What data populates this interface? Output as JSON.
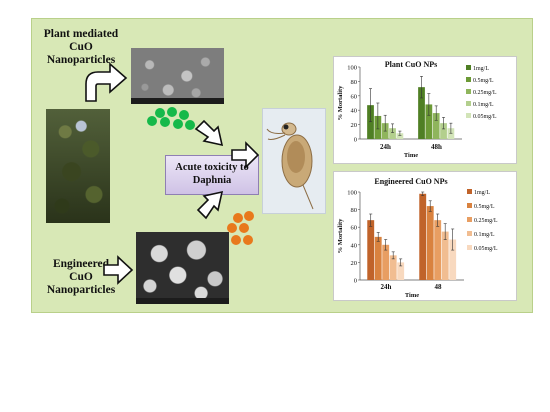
{
  "labels": {
    "plant": [
      "Plant mediated",
      "CuO",
      "Nanoparticles"
    ],
    "engineered": [
      "Engineered",
      "CuO",
      "Nanoparticles"
    ],
    "toxicity": [
      "Acute toxicity to",
      "Daphnia"
    ]
  },
  "colors": {
    "panel_bg": "#d8e8b6",
    "green_dots": "#16b94a",
    "orange_dots": "#e8791c",
    "label_box": "#cfc2e6"
  },
  "icons": {
    "arrow_plant": "hollow-curved-arrow-icon",
    "arrow_engineered": "hollow-right-arrow-icon",
    "arrow_to_daphnia": "hollow-diagonal-arrow-icon"
  },
  "chart_data": [
    {
      "type": "bar",
      "title": "Plant CuO NPs",
      "xlabel": "Time",
      "ylabel": "% Mortality",
      "categories": [
        "24h",
        "48h"
      ],
      "ylim": [
        0,
        100
      ],
      "yticks": [
        0,
        20,
        40,
        60,
        80,
        100
      ],
      "legend": "right",
      "series": [
        {
          "name": "1mg/L",
          "values": [
            47,
            72
          ],
          "errors": [
            23,
            15
          ],
          "color": "#4f7f24"
        },
        {
          "name": "0.5mg/L",
          "values": [
            32,
            48
          ],
          "errors": [
            18,
            15
          ],
          "color": "#6c9a36"
        },
        {
          "name": "0.25mg/L",
          "values": [
            22,
            36
          ],
          "errors": [
            11,
            10
          ],
          "color": "#8fb55c"
        },
        {
          "name": "0.1mg/L",
          "values": [
            15,
            22
          ],
          "errors": [
            6,
            8
          ],
          "color": "#b3cf8d"
        },
        {
          "name": "0.05mg/L",
          "values": [
            8,
            15
          ],
          "errors": [
            3,
            7
          ],
          "color": "#d2e4b8"
        }
      ]
    },
    {
      "type": "bar",
      "title": "Engineered CuO NPs",
      "xlabel": "Time",
      "ylabel": "% Mortality",
      "categories": [
        "24h",
        "48"
      ],
      "ylim": [
        0,
        100
      ],
      "yticks": [
        0,
        20,
        40,
        60,
        80,
        100
      ],
      "legend": "right",
      "series": [
        {
          "name": "1mg/L",
          "values": [
            68,
            98
          ],
          "errors": [
            7,
            2
          ],
          "color": "#c0632a"
        },
        {
          "name": "0.5mg/L",
          "values": [
            49,
            84
          ],
          "errors": [
            5,
            6
          ],
          "color": "#d9823f"
        },
        {
          "name": "0.25mg/L",
          "values": [
            40,
            68
          ],
          "errors": [
            6,
            7
          ],
          "color": "#e89e62"
        },
        {
          "name": "0.1mg/L",
          "values": [
            28,
            55
          ],
          "errors": [
            4,
            9
          ],
          "color": "#f1bd91"
        },
        {
          "name": "0.05mg/L",
          "values": [
            20,
            46
          ],
          "errors": [
            4,
            12
          ],
          "color": "#f8d9bf"
        }
      ]
    }
  ]
}
